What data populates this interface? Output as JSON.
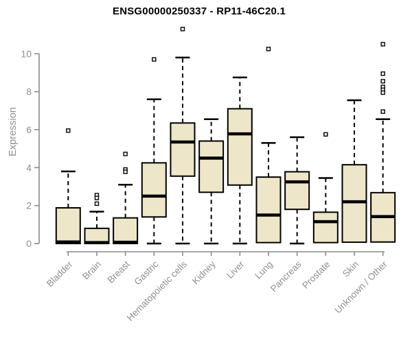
{
  "page": {
    "background": "#ffffff"
  },
  "chart_data": {
    "type": "boxplot",
    "title": "ENSG00000250337 - RP11-46C20.1",
    "xlabel": "",
    "ylabel": "Expression",
    "ylim": [
      0,
      11.5
    ],
    "yticks": [
      0,
      2,
      4,
      6,
      8,
      10
    ],
    "grid": false,
    "legend_position": "none",
    "categories": [
      "Bladder",
      "Brain",
      "Breast",
      "Gastric",
      "Hematopoietic cells",
      "Kidney",
      "Liver",
      "Lung",
      "Pancreas",
      "Prostate",
      "Skin",
      "Unknown / Other"
    ],
    "boxes": [
      {
        "category": "Bladder",
        "whisker_low": 0,
        "q1": 0,
        "median": 0.08,
        "q3": 1.88,
        "whisker_high": 3.8,
        "outliers": [
          5.95
        ]
      },
      {
        "category": "Brain",
        "whisker_low": 0,
        "q1": 0,
        "median": 0.05,
        "q3": 0.8,
        "whisker_high": 1.68,
        "outliers": [
          2.55,
          2.4,
          2.1
        ]
      },
      {
        "category": "Breast",
        "whisker_low": 0,
        "q1": 0,
        "median": 0.07,
        "q3": 1.35,
        "whisker_high": 3.1,
        "outliers": [
          4.72,
          3.9,
          3.78
        ]
      },
      {
        "category": "Gastric",
        "whisker_low": 0,
        "q1": 1.4,
        "median": 2.5,
        "q3": 4.25,
        "whisker_high": 7.6,
        "outliers": [
          9.7
        ]
      },
      {
        "category": "Hematopoietic cells",
        "whisker_low": 0,
        "q1": 3.55,
        "median": 5.35,
        "q3": 6.35,
        "whisker_high": 9.8,
        "outliers": [
          11.3
        ]
      },
      {
        "category": "Kidney",
        "whisker_low": 0,
        "q1": 2.7,
        "median": 4.5,
        "q3": 5.4,
        "whisker_high": 6.55,
        "outliers": []
      },
      {
        "category": "Liver",
        "whisker_low": 0,
        "q1": 3.08,
        "median": 5.78,
        "q3": 7.1,
        "whisker_high": 8.75,
        "outliers": []
      },
      {
        "category": "Lung",
        "whisker_low": 0.05,
        "q1": 0.05,
        "median": 1.5,
        "q3": 3.5,
        "whisker_high": 5.3,
        "outliers": [
          10.25
        ]
      },
      {
        "category": "Pancreas",
        "whisker_low": 0,
        "q1": 1.8,
        "median": 3.25,
        "q3": 3.78,
        "whisker_high": 5.6,
        "outliers": []
      },
      {
        "category": "Prostate",
        "whisker_low": 0.05,
        "q1": 0.05,
        "median": 1.15,
        "q3": 1.65,
        "whisker_high": 3.45,
        "outliers": [
          5.75
        ]
      },
      {
        "category": "Skin",
        "whisker_low": 0.07,
        "q1": 0.07,
        "median": 2.2,
        "q3": 4.15,
        "whisker_high": 7.55,
        "outliers": []
      },
      {
        "category": "Unknown / Other",
        "whisker_low": 0.08,
        "q1": 0.08,
        "median": 1.42,
        "q3": 2.68,
        "whisker_high": 6.55,
        "outliers": [
          10.5,
          8.95,
          8.55,
          8.25,
          8.1,
          7.95,
          6.95
        ]
      }
    ],
    "colors": {
      "box_fill": "#ede6c9",
      "box_border": "#000000",
      "median": "#000000",
      "whisker": "#000000",
      "outlier": "#000000",
      "axis": "#8a8a8a",
      "axis_text": "#8f8f8f",
      "title": "#000000"
    }
  }
}
